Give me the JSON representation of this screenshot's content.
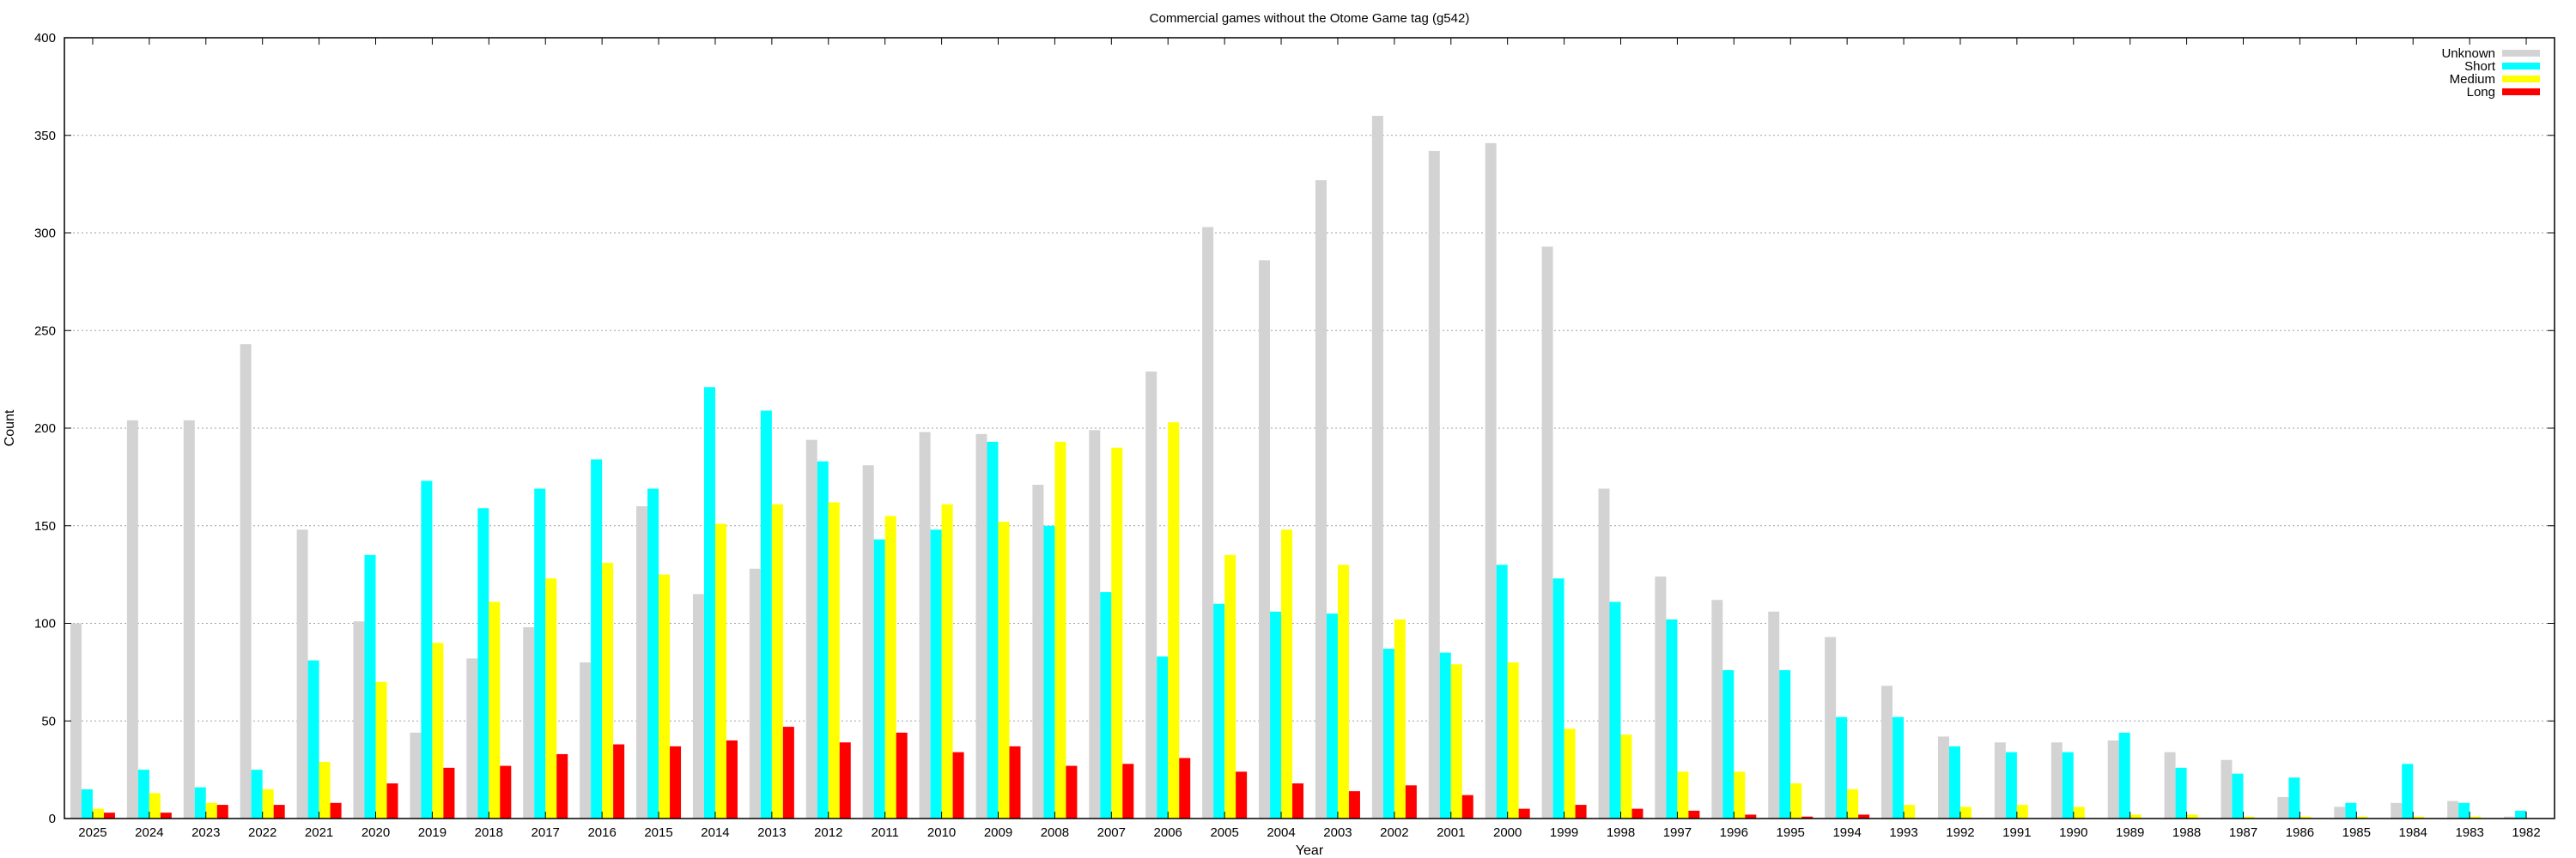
{
  "chart_data": {
    "type": "bar",
    "title": "Commercial games without the Otome Game tag (g542)",
    "xlabel": "Year",
    "ylabel": "Count",
    "ylim": [
      0,
      400
    ],
    "yticks": [
      0,
      50,
      100,
      150,
      200,
      250,
      300,
      350,
      400
    ],
    "grid": true,
    "legend_position": "top-right",
    "categories": [
      "2025",
      "2024",
      "2023",
      "2022",
      "2021",
      "2020",
      "2019",
      "2018",
      "2017",
      "2016",
      "2015",
      "2014",
      "2013",
      "2012",
      "2011",
      "2010",
      "2009",
      "2008",
      "2007",
      "2006",
      "2005",
      "2004",
      "2003",
      "2002",
      "2001",
      "2000",
      "1999",
      "1998",
      "1997",
      "1996",
      "1995",
      "1994",
      "1993",
      "1992",
      "1991",
      "1990",
      "1989",
      "1988",
      "1987",
      "1986",
      "1985",
      "1984",
      "1983",
      "1982"
    ],
    "series": [
      {
        "name": "Unknown",
        "color": "#d3d3d3",
        "values": [
          100,
          204,
          204,
          243,
          148,
          101,
          44,
          82,
          98,
          80,
          160,
          115,
          128,
          194,
          181,
          198,
          197,
          171,
          199,
          229,
          303,
          286,
          327,
          360,
          342,
          346,
          293,
          169,
          124,
          112,
          106,
          93,
          68,
          42,
          39,
          39,
          40,
          34,
          30,
          11,
          6,
          8,
          9,
          1
        ]
      },
      {
        "name": "Short",
        "color": "#00ffff",
        "values": [
          15,
          25,
          16,
          25,
          81,
          135,
          173,
          159,
          169,
          184,
          169,
          221,
          209,
          183,
          143,
          148,
          193,
          150,
          116,
          83,
          110,
          106,
          105,
          87,
          85,
          130,
          123,
          111,
          102,
          76,
          76,
          52,
          52,
          37,
          34,
          34,
          44,
          26,
          23,
          21,
          8,
          28,
          8,
          4
        ]
      },
      {
        "name": "Medium",
        "color": "#ffff00",
        "values": [
          5,
          13,
          8,
          15,
          29,
          70,
          90,
          111,
          123,
          131,
          125,
          151,
          161,
          162,
          155,
          161,
          152,
          193,
          190,
          203,
          135,
          148,
          130,
          102,
          79,
          80,
          46,
          43,
          24,
          24,
          18,
          15,
          7,
          6,
          7,
          6,
          2,
          2,
          1,
          1,
          1,
          1,
          1,
          0
        ]
      },
      {
        "name": "Long",
        "color": "#ff0000",
        "values": [
          3,
          3,
          7,
          7,
          8,
          18,
          26,
          27,
          33,
          38,
          37,
          40,
          47,
          39,
          44,
          34,
          37,
          27,
          28,
          31,
          24,
          18,
          14,
          17,
          12,
          5,
          7,
          5,
          4,
          2,
          1,
          2,
          0,
          0,
          0,
          0,
          0,
          0,
          0,
          0,
          0,
          0,
          0,
          0
        ]
      }
    ]
  }
}
